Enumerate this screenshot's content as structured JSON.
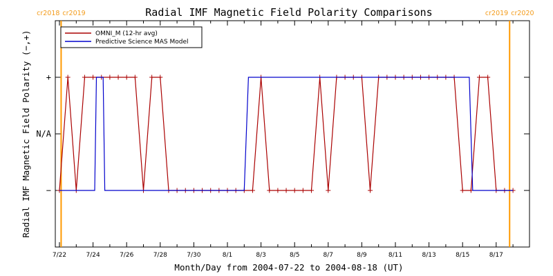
{
  "chart_data": {
    "type": "line",
    "title": "Radial IMF Magnetic Field Polarity Comparisons",
    "xlabel": "Month/Day from 2004-07-22 to 2004-08-18 (UT)",
    "ylabel": "Radial IMF Magnetic Field Polarity (−,+)",
    "xlim_days": [
      0,
      27
    ],
    "ylim": [
      -2,
      2
    ],
    "x_ticks": [
      {
        "day": 0,
        "label": "7/22"
      },
      {
        "day": 2,
        "label": "7/24"
      },
      {
        "day": 4,
        "label": "7/26"
      },
      {
        "day": 6,
        "label": "7/28"
      },
      {
        "day": 8,
        "label": "7/30"
      },
      {
        "day": 10,
        "label": "8/1"
      },
      {
        "day": 12,
        "label": "8/3"
      },
      {
        "day": 14,
        "label": "8/5"
      },
      {
        "day": 16,
        "label": "8/7"
      },
      {
        "day": 18,
        "label": "8/9"
      },
      {
        "day": 20,
        "label": "8/11"
      },
      {
        "day": 22,
        "label": "8/13"
      },
      {
        "day": 24,
        "label": "8/15"
      },
      {
        "day": 26,
        "label": "8/17"
      }
    ],
    "y_ticks": [
      {
        "value": 1,
        "label": "+"
      },
      {
        "value": 0,
        "label": "N/A"
      },
      {
        "value": -1,
        "label": "−"
      }
    ],
    "carrington_markers": [
      {
        "day": 0.1,
        "left_label": "cr2018",
        "right_label": "cr2019"
      },
      {
        "day": 26.8,
        "left_label": "cr2019",
        "right_label": "cr2020"
      }
    ],
    "legend": {
      "position": "top-left"
    },
    "colors": {
      "omni": "#aa0000",
      "mas": "#0000cc",
      "carrington": "#ff9900"
    },
    "series": [
      {
        "name": "OMNI_M (12-hr avg)",
        "color": "#aa0000",
        "markers": true,
        "x": [
          0,
          0.5,
          1,
          1.5,
          2,
          2.5,
          3,
          3.5,
          4,
          4.5,
          5,
          5.5,
          6,
          6.5,
          7,
          7.5,
          8,
          8.5,
          9,
          9.5,
          10,
          10.5,
          11,
          11.5,
          12,
          12.5,
          13,
          13.5,
          14,
          14.5,
          15,
          15.5,
          16,
          16.5,
          17,
          17.5,
          18,
          18.5,
          19,
          19.5,
          20,
          20.5,
          21,
          21.5,
          22,
          22.5,
          23,
          23.5,
          24,
          24.5,
          25,
          25.5,
          26,
          26.5,
          27
        ],
        "y": [
          -1,
          1,
          -1,
          1,
          1,
          1,
          1,
          1,
          1,
          1,
          -1,
          1,
          1,
          -1,
          -1,
          -1,
          -1,
          -1,
          -1,
          -1,
          -1,
          -1,
          -1,
          -1,
          1,
          -1,
          -1,
          -1,
          -1,
          -1,
          -1,
          1,
          -1,
          1,
          1,
          1,
          1,
          -1,
          1,
          1,
          1,
          1,
          1,
          1,
          1,
          1,
          1,
          1,
          -1,
          -1,
          1,
          1,
          -1,
          -1,
          -1
        ]
      },
      {
        "name": "Predictive Science MAS Model",
        "color": "#0000cc",
        "markers": false,
        "x": [
          0,
          2.1,
          2.2,
          2.6,
          2.7,
          11.0,
          11.25,
          24.4,
          24.6,
          27
        ],
        "y": [
          -1,
          -1,
          1,
          1,
          -1,
          -1,
          1,
          1,
          -1,
          -1
        ]
      }
    ]
  }
}
